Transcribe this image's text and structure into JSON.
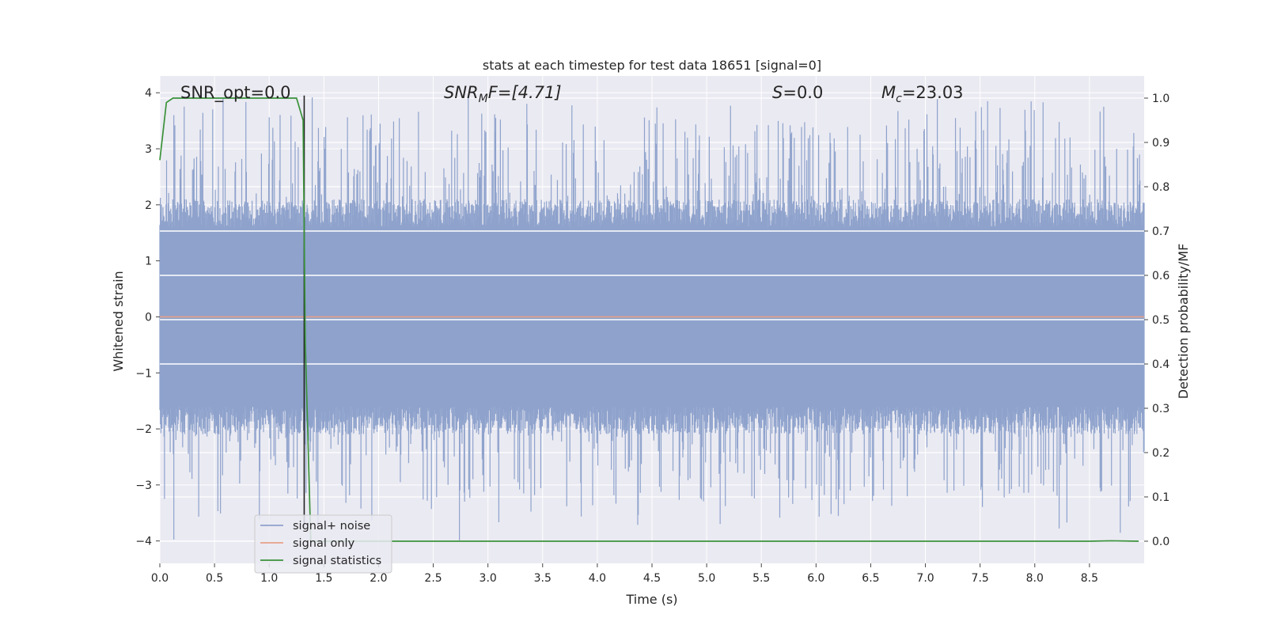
{
  "chart_data": {
    "type": "line",
    "title": "stats at each timestep for test data 18651 [signal=0]",
    "xlabel": "Time (s)",
    "ylabel": "Whitened strain",
    "y2label": "Detection probability/MF",
    "xlim": [
      0,
      9.0
    ],
    "ylim": [
      -4.4,
      4.3
    ],
    "y2lim": [
      -0.05,
      1.05
    ],
    "xticks": [
      "0.0",
      "0.5",
      "1.0",
      "1.5",
      "2.0",
      "2.5",
      "3.0",
      "3.5",
      "4.0",
      "4.5",
      "5.0",
      "5.5",
      "6.0",
      "6.5",
      "7.0",
      "7.5",
      "8.0",
      "8.5"
    ],
    "yticks": [
      "4",
      "3",
      "2",
      "1",
      "0",
      "−1",
      "−2",
      "−3",
      "−4"
    ],
    "y2ticks": [
      "1.0",
      "0.9",
      "0.8",
      "0.7",
      "0.6",
      "0.5",
      "0.4",
      "0.3",
      "0.2",
      "0.1",
      "0.0"
    ],
    "grid": true,
    "legend_position": "lower-left",
    "annotations": {
      "snr_opt": "SNR_opt=0.0",
      "snr_mf_main": "SNR",
      "snr_mf_sub": "M",
      "snr_mf_rest": "F=[4.71]",
      "s_main": "S",
      "s_rest": "=0.0",
      "mc_main": "M",
      "mc_sub": "c",
      "mc_rest": "=23.03"
    },
    "vline_x": 1.32,
    "series": [
      {
        "name": "signal+ noise",
        "color": "#8ea2cc",
        "kind": "noise",
        "x_range": [
          0,
          9.0
        ],
        "envelope_upper": 1.6,
        "envelope_lower": -1.6,
        "peak_max": 3.95,
        "peak_min": -4.0
      },
      {
        "name": "signal only",
        "color": "#e8a188",
        "x": [
          0,
          9.0
        ],
        "y": [
          0,
          0
        ]
      },
      {
        "name": "signal statistics",
        "color": "#3a923a",
        "axis": "right",
        "x": [
          0.0,
          0.06,
          0.12,
          0.5,
          1.0,
          1.25,
          1.31,
          1.33,
          1.38,
          1.5,
          3.0,
          5.0,
          7.0,
          8.5,
          8.7,
          8.95
        ],
        "y": [
          0.86,
          0.99,
          1.0,
          1.0,
          1.0,
          1.0,
          0.95,
          0.45,
          0.0,
          0.0,
          0.0,
          0.0,
          0.0,
          0.0,
          0.001,
          0.0
        ]
      }
    ]
  }
}
